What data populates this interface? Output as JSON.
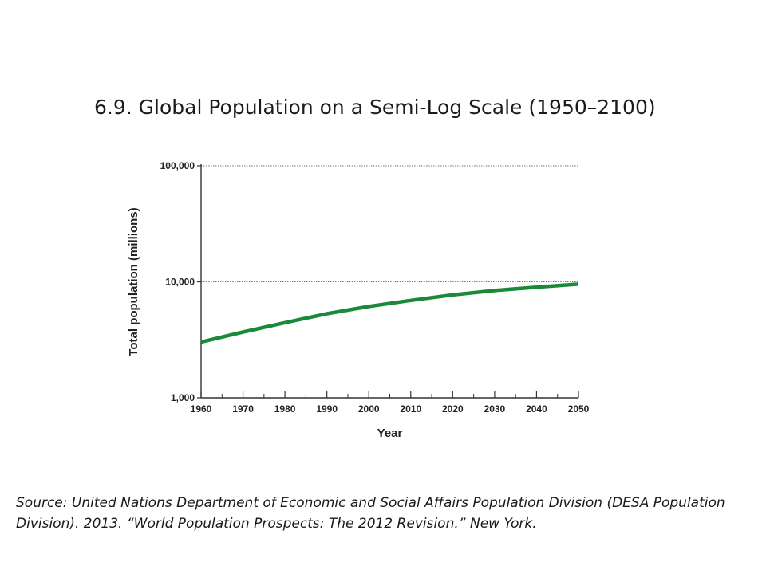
{
  "slide": {
    "title": "6.9. Global Population on a Semi-Log Scale (1950–2100)",
    "source": "Source: United Nations Department of Economic and Social Affairs Population Division (DESA Population Division). 2013. “World Population Prospects: The 2012 Revision.” New York."
  },
  "chart_data": {
    "type": "line",
    "title": "",
    "xlabel": "Year",
    "ylabel": "Total population (millions)",
    "xlim": [
      1960,
      2050
    ],
    "ylim": [
      1000,
      100000
    ],
    "yscale": "log",
    "x_ticks": [
      1960,
      1970,
      1980,
      1990,
      2000,
      2010,
      2020,
      2030,
      2040,
      2050
    ],
    "x_tick_labels": [
      "1960",
      "1970",
      "1980",
      "1990",
      "2000",
      "2010",
      "2020",
      "2030",
      "2040",
      "2050"
    ],
    "y_ticks": [
      1000,
      10000,
      100000
    ],
    "y_tick_labels": [
      "1,000",
      "10,000",
      "100,000"
    ],
    "grid": "horizontal dotted at 10,000 and 100,000",
    "series": [
      {
        "color": "#1a8a3a",
        "x": [
          1960,
          1970,
          1980,
          1990,
          2000,
          2010,
          2020,
          2030,
          2040,
          2050
        ],
        "values": [
          3030,
          3690,
          4440,
          5310,
          6130,
          6920,
          7720,
          8420,
          9000,
          9550
        ]
      }
    ],
    "colors": {
      "line": "#1a8a3a",
      "axis": "#333333",
      "grid": "#777777"
    }
  }
}
